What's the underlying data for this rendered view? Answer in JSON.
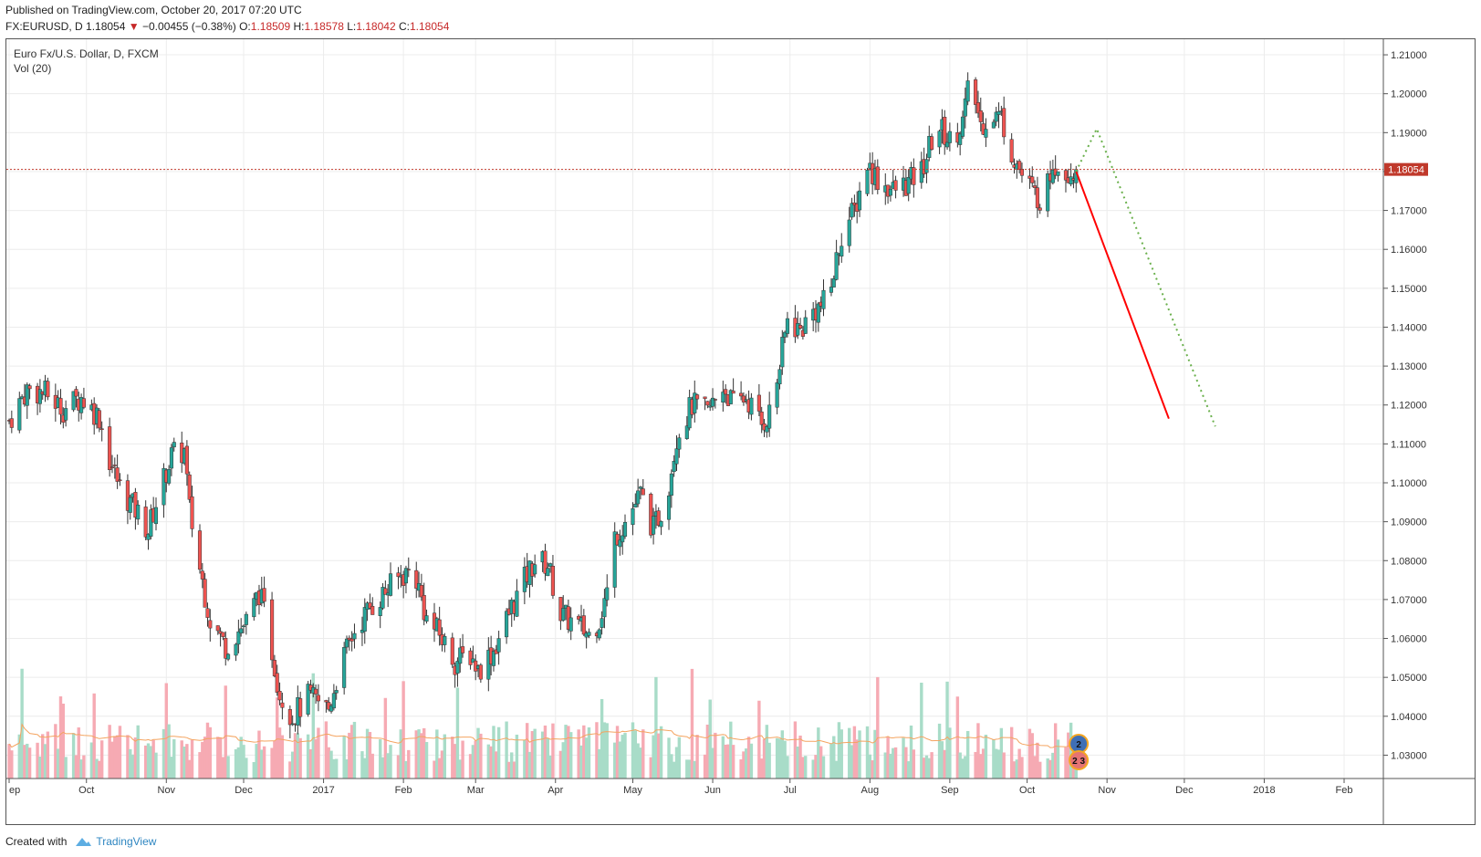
{
  "published_line": "Published on TradingView.com, October 20, 2017 07:20 UTC",
  "quote": {
    "symbol": "FX:EURUSD, D",
    "last": "1.18054",
    "arrow": "▼",
    "change": "−0.00455 (−0.38%)",
    "open_label": "O:",
    "open": "1.18509",
    "high_label": "H:",
    "high": "1.18578",
    "low_label": "L:",
    "low": "1.18042",
    "close_label": "C:",
    "close": "1.18054"
  },
  "legend": {
    "series": "Euro Fx/U.S. Dollar, D, FXCM",
    "volume": "Vol (20)"
  },
  "footer": {
    "created_with": "Created with",
    "brand": "TradingView"
  },
  "colors": {
    "up": "#26a69a",
    "down": "#ef5350",
    "volume_up": "#a8dcc8",
    "volume_down": "#f6aab3",
    "vol_ma": "#f4a460",
    "price_line": "#c0392b",
    "projection_solid": "#ff0000",
    "projection_dotted": "#6ab04c"
  },
  "chart_data": {
    "type": "candlestick",
    "symbol": "EURUSD",
    "interval": "D",
    "ylim": [
      1.024,
      1.214
    ],
    "y_ticks": [
      "1.21000",
      "1.20000",
      "1.19000",
      "1.18000",
      "1.17000",
      "1.16000",
      "1.15000",
      "1.14000",
      "1.13000",
      "1.12000",
      "1.11000",
      "1.10000",
      "1.09000",
      "1.08000",
      "1.07000",
      "1.06000",
      "1.05000",
      "1.04000",
      "1.03000"
    ],
    "x_ticks": [
      {
        "label": "ep",
        "date": "2016-09-01"
      },
      {
        "label": "Oct",
        "date": "2016-10-01"
      },
      {
        "label": "Nov",
        "date": "2016-11-01"
      },
      {
        "label": "Dec",
        "date": "2016-12-01"
      },
      {
        "label": "2017",
        "date": "2017-01-01"
      },
      {
        "label": "Feb",
        "date": "2017-02-01"
      },
      {
        "label": "Mar",
        "date": "2017-03-01"
      },
      {
        "label": "Apr",
        "date": "2017-04-01"
      },
      {
        "label": "May",
        "date": "2017-05-01"
      },
      {
        "label": "Jun",
        "date": "2017-06-01"
      },
      {
        "label": "Jul",
        "date": "2017-07-01"
      },
      {
        "label": "Aug",
        "date": "2017-08-01"
      },
      {
        "label": "Sep",
        "date": "2017-09-01"
      },
      {
        "label": "Oct",
        "date": "2017-10-01"
      },
      {
        "label": "Nov",
        "date": "2017-11-01"
      },
      {
        "label": "Dec",
        "date": "2017-12-01"
      },
      {
        "label": "2018",
        "date": "2018-01-01"
      },
      {
        "label": "Feb",
        "date": "2018-02-01"
      }
    ],
    "last_price_label": "1.18054",
    "last_price": 1.18054,
    "event_markers": [
      "2",
      "2",
      "3"
    ],
    "close_path": [
      {
        "date": "2016-09-01",
        "close": 1.116
      },
      {
        "date": "2016-09-08",
        "close": 1.124
      },
      {
        "date": "2016-09-15",
        "close": 1.123
      },
      {
        "date": "2016-09-22",
        "close": 1.119
      },
      {
        "date": "2016-09-29",
        "close": 1.122
      },
      {
        "date": "2016-10-06",
        "close": 1.117
      },
      {
        "date": "2016-10-10",
        "close": 1.106
      },
      {
        "date": "2016-10-14",
        "close": 1.099
      },
      {
        "date": "2016-10-20",
        "close": 1.093
      },
      {
        "date": "2016-10-25",
        "close": 1.088
      },
      {
        "date": "2016-10-29",
        "close": 1.097
      },
      {
        "date": "2016-11-03",
        "close": 1.107
      },
      {
        "date": "2016-11-08",
        "close": 1.108
      },
      {
        "date": "2016-11-10",
        "close": 1.093
      },
      {
        "date": "2016-11-14",
        "close": 1.078
      },
      {
        "date": "2016-11-18",
        "close": 1.065
      },
      {
        "date": "2016-11-24",
        "close": 1.058
      },
      {
        "date": "2016-11-29",
        "close": 1.062
      },
      {
        "date": "2016-12-03",
        "close": 1.065
      },
      {
        "date": "2016-12-07",
        "close": 1.072
      },
      {
        "date": "2016-12-10",
        "close": 1.064
      },
      {
        "date": "2016-12-15",
        "close": 1.046
      },
      {
        "date": "2016-12-20",
        "close": 1.04
      },
      {
        "date": "2016-12-26",
        "close": 1.045
      },
      {
        "date": "2017-01-03",
        "close": 1.042
      },
      {
        "date": "2017-01-07",
        "close": 1.052
      },
      {
        "date": "2017-01-13",
        "close": 1.062
      },
      {
        "date": "2017-01-19",
        "close": 1.068
      },
      {
        "date": "2017-01-25",
        "close": 1.072
      },
      {
        "date": "2017-01-31",
        "close": 1.076
      },
      {
        "date": "2017-02-05",
        "close": 1.078
      },
      {
        "date": "2017-02-10",
        "close": 1.065
      },
      {
        "date": "2017-02-15",
        "close": 1.061
      },
      {
        "date": "2017-02-21",
        "close": 1.054
      },
      {
        "date": "2017-02-27",
        "close": 1.056
      },
      {
        "date": "2017-03-02",
        "close": 1.052
      },
      {
        "date": "2017-03-08",
        "close": 1.057
      },
      {
        "date": "2017-03-15",
        "close": 1.068
      },
      {
        "date": "2017-03-20",
        "close": 1.075
      },
      {
        "date": "2017-03-24",
        "close": 1.08
      },
      {
        "date": "2017-03-29",
        "close": 1.079
      },
      {
        "date": "2017-04-03",
        "close": 1.066
      },
      {
        "date": "2017-04-08",
        "close": 1.064
      },
      {
        "date": "2017-04-14",
        "close": 1.061
      },
      {
        "date": "2017-04-18",
        "close": 1.065
      },
      {
        "date": "2017-04-21",
        "close": 1.072
      },
      {
        "date": "2017-04-24",
        "close": 1.086
      },
      {
        "date": "2017-04-28",
        "close": 1.09
      },
      {
        "date": "2017-05-04",
        "close": 1.097
      },
      {
        "date": "2017-05-09",
        "close": 1.088
      },
      {
        "date": "2017-05-14",
        "close": 1.096
      },
      {
        "date": "2017-05-18",
        "close": 1.112
      },
      {
        "date": "2017-05-24",
        "close": 1.12
      },
      {
        "date": "2017-05-30",
        "close": 1.118
      },
      {
        "date": "2017-06-05",
        "close": 1.125
      },
      {
        "date": "2017-06-09",
        "close": 1.12
      },
      {
        "date": "2017-06-14",
        "close": 1.122
      },
      {
        "date": "2017-06-20",
        "close": 1.115
      },
      {
        "date": "2017-06-24",
        "close": 1.119
      },
      {
        "date": "2017-06-27",
        "close": 1.13
      },
      {
        "date": "2017-06-30",
        "close": 1.142
      },
      {
        "date": "2017-07-05",
        "close": 1.139
      },
      {
        "date": "2017-07-10",
        "close": 1.144
      },
      {
        "date": "2017-07-16",
        "close": 1.147
      },
      {
        "date": "2017-07-21",
        "close": 1.164
      },
      {
        "date": "2017-07-26",
        "close": 1.17
      },
      {
        "date": "2017-07-31",
        "close": 1.182
      },
      {
        "date": "2017-08-04",
        "close": 1.178
      },
      {
        "date": "2017-08-10",
        "close": 1.175
      },
      {
        "date": "2017-08-16",
        "close": 1.177
      },
      {
        "date": "2017-08-21",
        "close": 1.18
      },
      {
        "date": "2017-08-27",
        "close": 1.192
      },
      {
        "date": "2017-09-01",
        "close": 1.188
      },
      {
        "date": "2017-09-06",
        "close": 1.193
      },
      {
        "date": "2017-09-09",
        "close": 1.204
      },
      {
        "date": "2017-09-13",
        "close": 1.192
      },
      {
        "date": "2017-09-17",
        "close": 1.195
      },
      {
        "date": "2017-09-21",
        "close": 1.194
      },
      {
        "date": "2017-09-25",
        "close": 1.185
      },
      {
        "date": "2017-09-29",
        "close": 1.179
      },
      {
        "date": "2017-10-04",
        "close": 1.174
      },
      {
        "date": "2017-10-08",
        "close": 1.173
      },
      {
        "date": "2017-10-11",
        "close": 1.183
      },
      {
        "date": "2017-10-15",
        "close": 1.18
      },
      {
        "date": "2017-10-20",
        "close": 1.1805
      }
    ],
    "projections": [
      {
        "style": "solid",
        "from": {
          "date": "2017-10-20",
          "price": 1.18
        },
        "to": {
          "date": "2017-11-25",
          "price": 1.1165
        }
      },
      {
        "style": "dotted",
        "from": {
          "date": "2017-10-20",
          "price": 1.18
        },
        "via": {
          "date": "2017-10-28",
          "price": 1.191
        },
        "to": {
          "date": "2017-12-13",
          "price": 1.1145
        }
      }
    ]
  }
}
